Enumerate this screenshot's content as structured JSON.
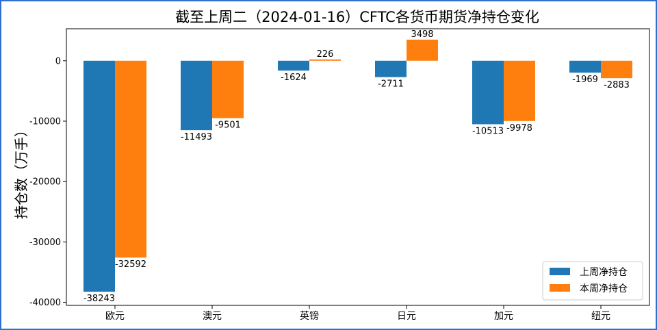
{
  "chart_data": {
    "type": "bar",
    "title": "截至上周二（2024-01-16）CFTC各货币期货净持仓变化",
    "xlabel": "",
    "ylabel": "持仓数（万手）",
    "categories": [
      "欧元",
      "澳元",
      "英镑",
      "日元",
      "加元",
      "纽元"
    ],
    "series": [
      {
        "name": "上周净持仓",
        "color": "#1f77b4",
        "values": [
          -38243,
          -11493,
          -1624,
          -2711,
          -10513,
          -1969
        ]
      },
      {
        "name": "本周净持仓",
        "color": "#ff7f0e",
        "values": [
          -32592,
          -9501,
          226,
          3498,
          -9978,
          -2883
        ]
      }
    ],
    "ylim": [
      -40500,
      5300
    ],
    "yticks": [
      0,
      -10000,
      -20000,
      -30000,
      -40000
    ],
    "legend": "lower-right",
    "grid": false
  }
}
